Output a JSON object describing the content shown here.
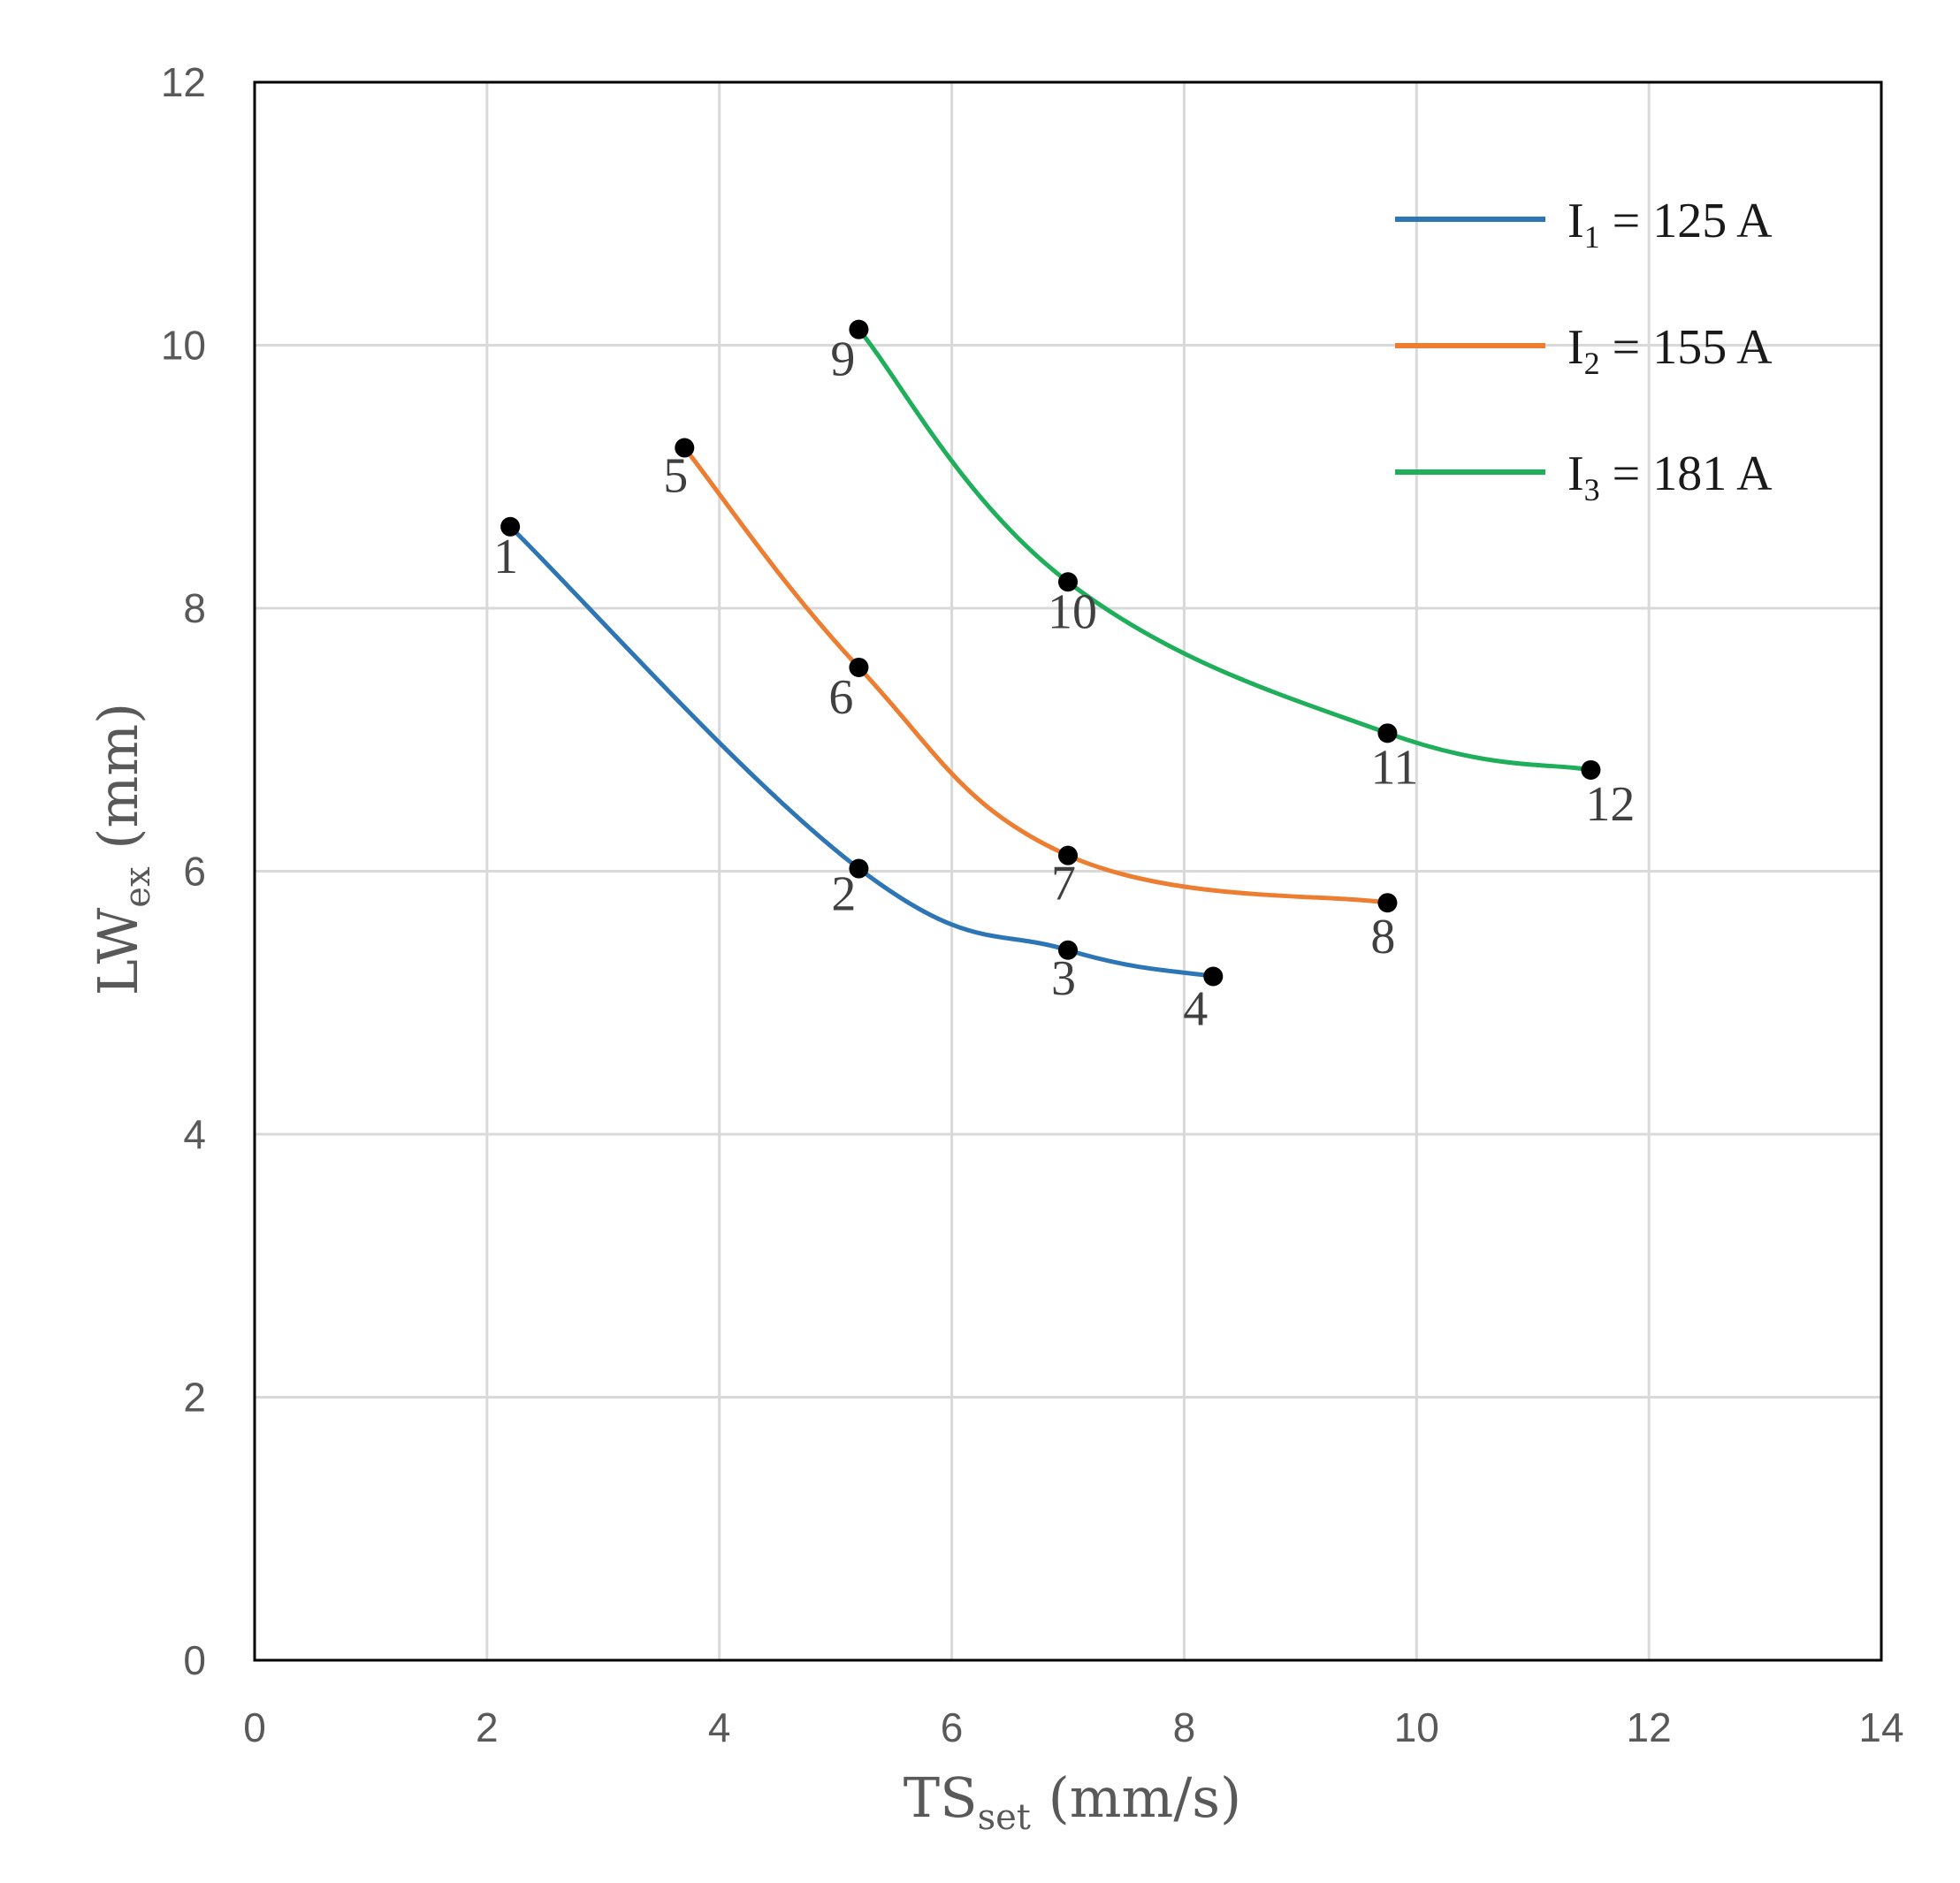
{
  "chart_data": {
    "type": "line",
    "xlabel": {
      "main": "TS",
      "sub": "set",
      "unit": " (mm/s)"
    },
    "ylabel": {
      "main": "LW",
      "sub": "ex",
      "unit": " (mm)"
    },
    "xlim": [
      0,
      14
    ],
    "ylim": [
      0,
      12
    ],
    "x_ticks": [
      0,
      2,
      4,
      6,
      8,
      10,
      12,
      14
    ],
    "y_ticks": [
      0,
      2,
      4,
      6,
      8,
      10,
      12
    ],
    "grid": true,
    "legend_position": "top-right",
    "series": [
      {
        "name": "I1 = 125 A",
        "legend": {
          "main": "I",
          "sub": "1",
          "rest": " = 125 A"
        },
        "color": "#2E75B6",
        "points": [
          {
            "label": "1",
            "x": 2.2,
            "y": 8.62
          },
          {
            "label": "2",
            "x": 5.2,
            "y": 6.02
          },
          {
            "label": "3",
            "x": 7.0,
            "y": 5.4
          },
          {
            "label": "4",
            "x": 8.25,
            "y": 5.2
          }
        ]
      },
      {
        "name": "I2 = 155 A",
        "legend": {
          "main": "I",
          "sub": "2",
          "rest": " = 155 A"
        },
        "color": "#ED7D31",
        "points": [
          {
            "label": "5",
            "x": 3.7,
            "y": 9.22
          },
          {
            "label": "6",
            "x": 5.2,
            "y": 7.55
          },
          {
            "label": "7",
            "x": 7.0,
            "y": 6.12
          },
          {
            "label": "8",
            "x": 9.75,
            "y": 5.76
          }
        ]
      },
      {
        "name": "I3 = 181 A",
        "legend": {
          "main": "I",
          "sub": "3",
          "rest": " = 181 A"
        },
        "color": "#1FAE5A",
        "points": [
          {
            "label": "9",
            "x": 5.2,
            "y": 10.12
          },
          {
            "label": "10",
            "x": 7.0,
            "y": 8.2
          },
          {
            "label": "11",
            "x": 9.75,
            "y": 7.05
          },
          {
            "label": "12",
            "x": 11.5,
            "y": 6.77
          }
        ]
      }
    ]
  }
}
